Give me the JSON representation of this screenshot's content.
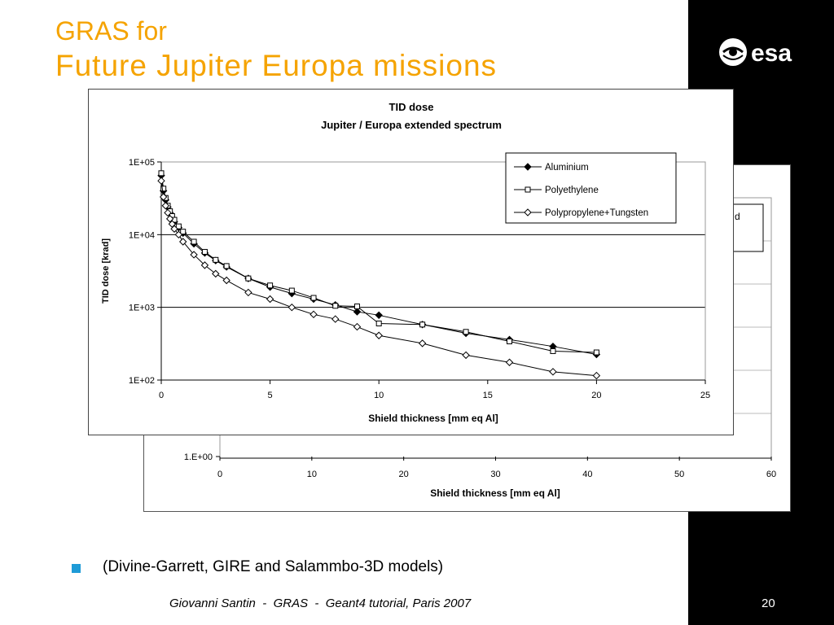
{
  "slide": {
    "title_line1": "GRAS for",
    "title_line2": "Future Jupiter Europa missions",
    "logo_text": "esa",
    "bullet": "(Divine-Garrett, GIRE and Salammbo-3D models)",
    "footer": "Giovanni Santin  -  GRAS  -  Geant4 tutorial, Paris 2007",
    "page_number": "20",
    "colors": {
      "title": "#f5a300",
      "bullet": "#1e9bd7",
      "right_band": "#000000"
    }
  },
  "chart_data": [
    {
      "type": "scatter",
      "title": "TID dose",
      "subtitle": "Jupiter / Europa extended spectrum",
      "xlabel": "Shield thickness [mm eq Al]",
      "ylabel": "TID dose [krad]",
      "xlim": [
        0,
        25
      ],
      "ylim": [
        100,
        100000
      ],
      "y_scale": "log",
      "x_ticks": [
        "0",
        "5",
        "10",
        "15",
        "20",
        "25"
      ],
      "y_ticks": [
        "1E+02",
        "1E+03",
        "1E+04",
        "1E+05"
      ],
      "grid": "horizontal",
      "legend_position": "top-right",
      "series": [
        {
          "name": "Aluminium",
          "marker": "diamond-filled",
          "x": [
            0,
            0.1,
            0.2,
            0.3,
            0.4,
            0.5,
            0.6,
            0.8,
            1,
            1.5,
            2,
            2.5,
            3,
            4,
            5,
            6,
            7,
            8,
            9,
            10,
            12,
            14,
            16,
            18,
            20
          ],
          "y": [
            65000,
            40000,
            30000,
            24000,
            20000,
            17000,
            15000,
            12500,
            10500,
            7500,
            5600,
            4400,
            3600,
            2500,
            1900,
            1550,
            1300,
            1080,
            870,
            780,
            580,
            440,
            360,
            290,
            225
          ]
        },
        {
          "name": "Polyethylene",
          "marker": "square-open",
          "x": [
            0,
            0.1,
            0.2,
            0.3,
            0.4,
            0.5,
            0.6,
            0.8,
            1,
            1.5,
            2,
            2.5,
            3,
            4,
            5,
            6,
            7,
            8,
            9,
            10,
            12,
            14,
            16,
            18,
            20
          ],
          "y": [
            70000,
            43000,
            32000,
            25000,
            21000,
            18000,
            16000,
            13000,
            11000,
            8000,
            5800,
            4500,
            3700,
            2500,
            2000,
            1700,
            1350,
            1050,
            1030,
            600,
            580,
            460,
            340,
            250,
            240
          ]
        },
        {
          "name": "Polypropylene+Tungsten",
          "marker": "diamond-open",
          "x": [
            0,
            0.1,
            0.2,
            0.3,
            0.4,
            0.5,
            0.6,
            0.8,
            1,
            1.5,
            2,
            2.5,
            3,
            4,
            5,
            6,
            7,
            8,
            9,
            10,
            12,
            14,
            16,
            18,
            20
          ],
          "y": [
            55000,
            33000,
            25000,
            20000,
            16500,
            14000,
            12000,
            10000,
            8000,
            5300,
            3800,
            2900,
            2350,
            1600,
            1300,
            1000,
            800,
            690,
            540,
            410,
            320,
            220,
            175,
            130,
            115
          ]
        }
      ]
    },
    {
      "type": "scatter",
      "xlabel": "Shield thickness [mm eq Al]",
      "xlim": [
        0,
        60
      ],
      "x_ticks": [
        "0",
        "10",
        "20",
        "30",
        "40",
        "50",
        "60"
      ],
      "y_ticks": [
        "1.E+00"
      ],
      "legend_visible_fragment": "d",
      "grid": "horizontal",
      "note": "partially hidden behind front chart"
    }
  ]
}
